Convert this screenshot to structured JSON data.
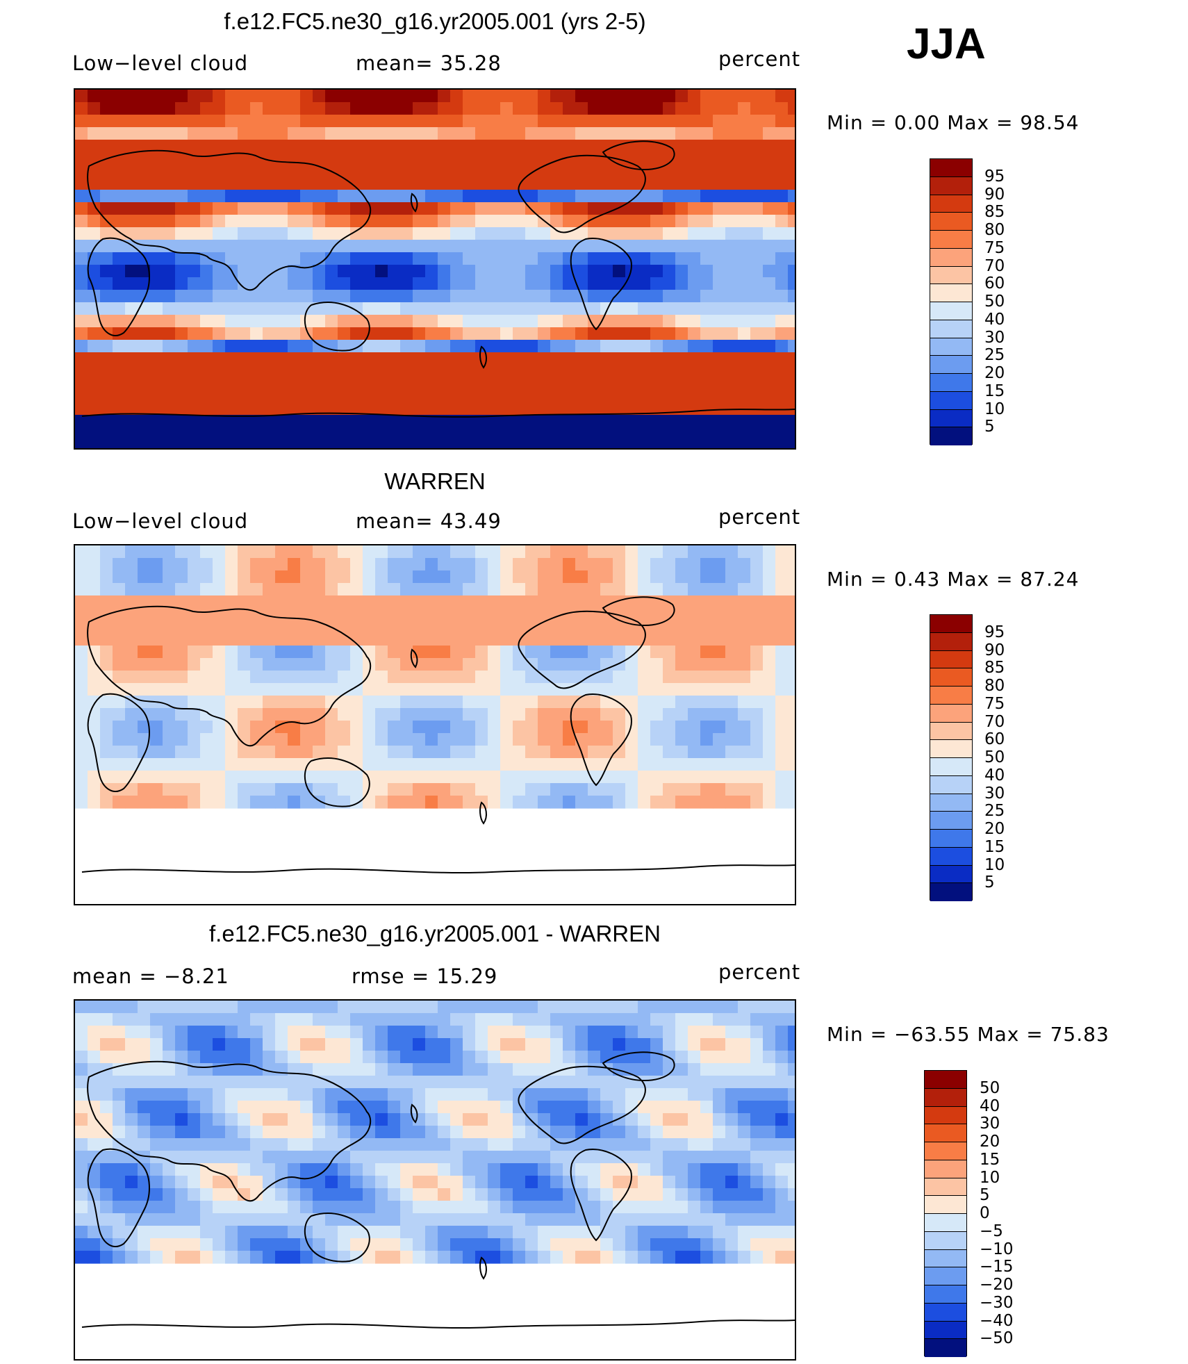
{
  "season": "JJA",
  "panels": [
    {
      "title": "f.e12.FC5.ne30_g16.yr2005.001 (yrs 2-5)",
      "left_label": "Low−level cloud",
      "center_label": "mean=   35.28",
      "units": "percent",
      "minmax": "Min  =     0.00  Max  =    98.54",
      "levels": [
        "95",
        "90",
        "85",
        "80",
        "75",
        "70",
        "60",
        "50",
        "40",
        "30",
        "25",
        "20",
        "15",
        "10",
        "5"
      ],
      "colors": [
        "#8b0000",
        "#b3200b",
        "#d43a10",
        "#ea5a22",
        "#f87d46",
        "#fca37b",
        "#fcc4a4",
        "#fde7d4",
        "#d6e8f8",
        "#b7d2f7",
        "#93b9f4",
        "#6c9cf0",
        "#3f78ea",
        "#1c4ee0",
        "#0a2cc4",
        "#02107e"
      ],
      "map_type": "model"
    },
    {
      "title": "WARREN",
      "left_label": "Low−level cloud",
      "center_label": "mean=   43.49",
      "units": "percent",
      "minmax": "Min  =     0.43  Max  =    87.24",
      "levels": [
        "95",
        "90",
        "85",
        "80",
        "75",
        "70",
        "60",
        "50",
        "40",
        "30",
        "25",
        "20",
        "15",
        "10",
        "5"
      ],
      "colors": [
        "#8b0000",
        "#b3200b",
        "#d43a10",
        "#ea5a22",
        "#f87d46",
        "#fca37b",
        "#fcc4a4",
        "#fde7d4",
        "#d6e8f8",
        "#b7d2f7",
        "#93b9f4",
        "#6c9cf0",
        "#3f78ea",
        "#1c4ee0",
        "#0a2cc4",
        "#02107e"
      ],
      "map_type": "obs"
    },
    {
      "title": "f.e12.FC5.ne30_g16.yr2005.001 - WARREN",
      "left_label": "mean  =    −8.21",
      "center_label": "rmse  =    15.29",
      "units": "percent",
      "minmax": "Min  = −63.55  Max  =    75.83",
      "levels": [
        "50",
        "40",
        "30",
        "20",
        "15",
        "10",
        "5",
        "0",
        "−5",
        "−10",
        "−15",
        "−20",
        "−30",
        "−40",
        "−50"
      ],
      "colors": [
        "#8b0000",
        "#b3200b",
        "#d43a10",
        "#ea5a22",
        "#f87d46",
        "#fca37b",
        "#fcc4a4",
        "#fde7d4",
        "#d6e8f8",
        "#b7d2f7",
        "#93b9f4",
        "#6c9cf0",
        "#3f78ea",
        "#1c4ee0",
        "#0a2cc4",
        "#02107e"
      ],
      "map_type": "diff"
    }
  ]
}
